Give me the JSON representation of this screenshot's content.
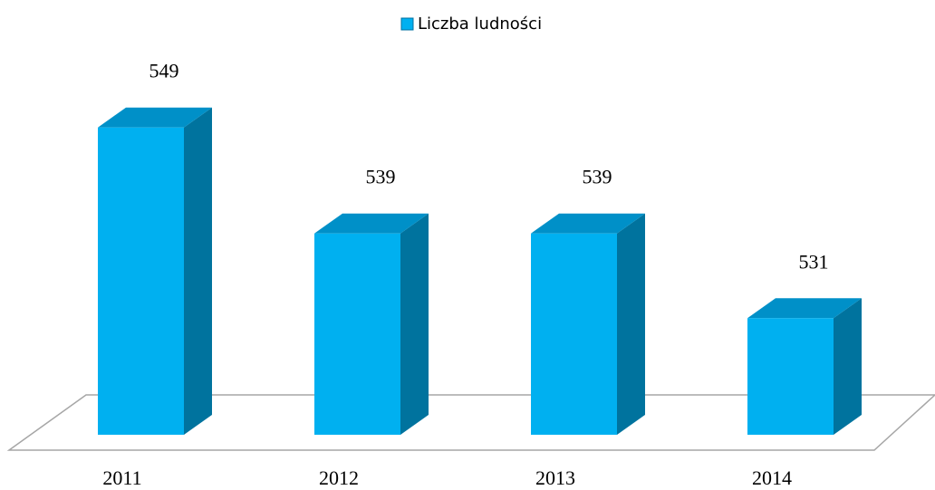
{
  "chart_data": {
    "type": "bar3d",
    "legend_label": "Liczba ludności",
    "categories": [
      "2011",
      "2012",
      "2013",
      "2014"
    ],
    "values": [
      549,
      539,
      539,
      531
    ],
    "color": "#00b0f0",
    "ylim": [
      520,
      555
    ]
  }
}
